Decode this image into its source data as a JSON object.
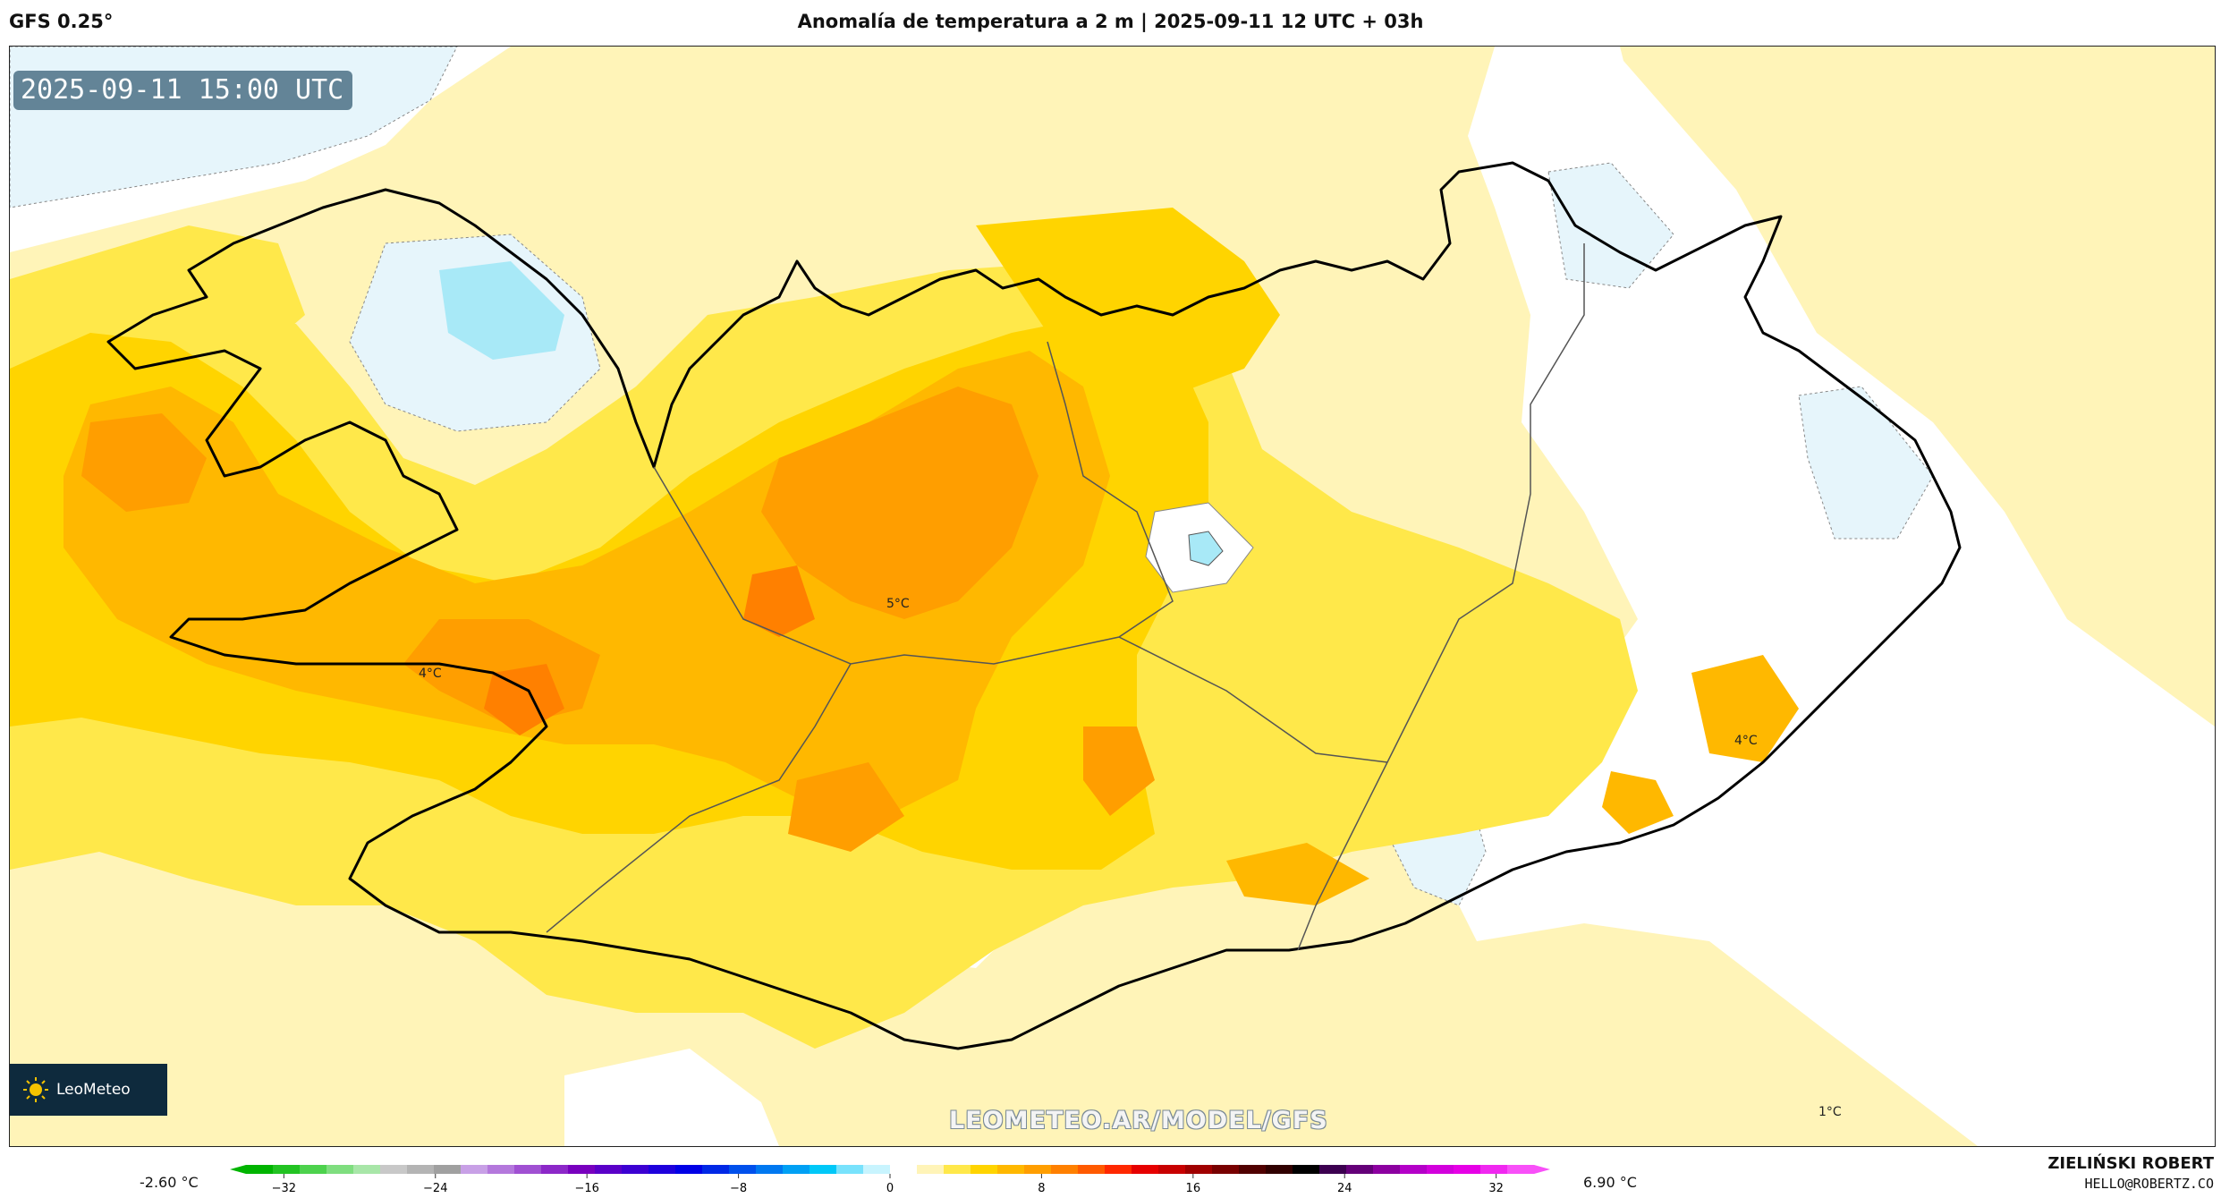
{
  "header": {
    "model": "GFS 0.25°",
    "title": "Anomalía de temperatura a 2 m | 2025-09-11 12 UTC + 03h"
  },
  "map": {
    "valid_time": "2025-09-11 15:00 UTC",
    "region": "Iceland",
    "contour_labels": [
      {
        "text": "5°C"
      },
      {
        "text": "4°C"
      },
      {
        "text": "4°C"
      },
      {
        "text": "1°C"
      }
    ],
    "colors": {
      "cold_1": "#e6f5fb",
      "cold_2": "#a8e9f7",
      "zero": "#ffffff",
      "warm_1": "#fff4b8",
      "warm_2": "#ffe84a",
      "warm_3": "#ffd400",
      "warm_4": "#ffb800",
      "warm_5": "#ff9e00",
      "warm_6": "#ff8000"
    }
  },
  "branding": {
    "logo_text": "LeoMeteo",
    "watermark": "LEOMETEO.AR/MODEL/GFS"
  },
  "colorbar": {
    "min_label": "-2.60 °C",
    "max_label": "6.90 °C",
    "ticks": [
      "−32",
      "−24",
      "−16",
      "−8",
      "0",
      "8",
      "16",
      "24",
      "32"
    ],
    "range": [
      -34,
      34
    ]
  },
  "footer": {
    "author": "ZIELIŃSKI ROBERT",
    "email": "HELLO@ROBERTZ.CO"
  }
}
